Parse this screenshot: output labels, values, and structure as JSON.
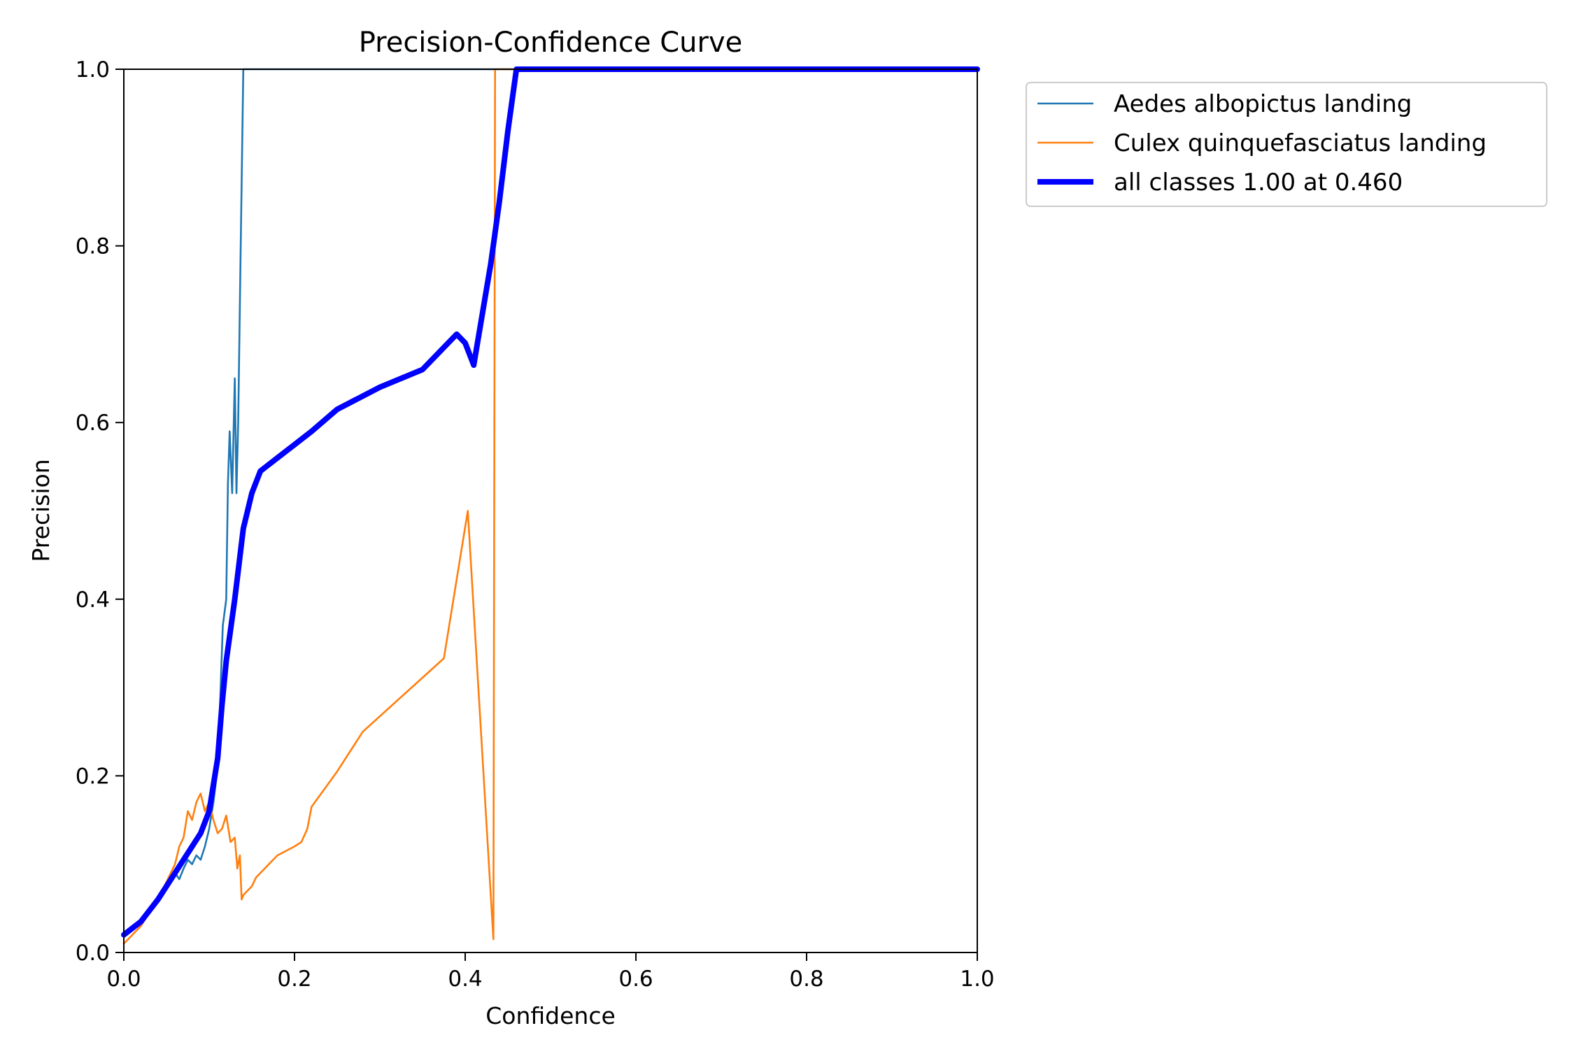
{
  "chart_data": {
    "type": "line",
    "title": "Precision-Confidence Curve",
    "xlabel": "Confidence",
    "ylabel": "Precision",
    "xlim": [
      0,
      1
    ],
    "ylim": [
      0,
      1
    ],
    "xticks": [
      "0.0",
      "0.2",
      "0.4",
      "0.6",
      "0.8",
      "1.0"
    ],
    "yticks": [
      "0.0",
      "0.2",
      "0.4",
      "0.6",
      "0.8",
      "1.0"
    ],
    "grid": false,
    "legend_position": "outside-top-right",
    "series": [
      {
        "name": "Aedes  albopictus landing",
        "color": "#1f77b4",
        "line_width": "thin",
        "points": [
          [
            0.0,
            0.02
          ],
          [
            0.02,
            0.035
          ],
          [
            0.04,
            0.06
          ],
          [
            0.055,
            0.08
          ],
          [
            0.06,
            0.09
          ],
          [
            0.065,
            0.083
          ],
          [
            0.07,
            0.095
          ],
          [
            0.075,
            0.105
          ],
          [
            0.08,
            0.1
          ],
          [
            0.085,
            0.11
          ],
          [
            0.09,
            0.105
          ],
          [
            0.095,
            0.12
          ],
          [
            0.1,
            0.14
          ],
          [
            0.105,
            0.17
          ],
          [
            0.11,
            0.21
          ],
          [
            0.112,
            0.26
          ],
          [
            0.116,
            0.37
          ],
          [
            0.12,
            0.4
          ],
          [
            0.122,
            0.53
          ],
          [
            0.124,
            0.59
          ],
          [
            0.127,
            0.52
          ],
          [
            0.13,
            0.65
          ],
          [
            0.132,
            0.52
          ],
          [
            0.134,
            0.6
          ],
          [
            0.137,
            0.8
          ],
          [
            0.14,
            1.0
          ],
          [
            0.15,
            1.0
          ],
          [
            0.2,
            1.0
          ],
          [
            0.3,
            1.0
          ],
          [
            0.4,
            1.0
          ],
          [
            0.5,
            1.0
          ],
          [
            0.6,
            1.0
          ],
          [
            0.8,
            1.0
          ],
          [
            1.0,
            1.0
          ]
        ]
      },
      {
        "name": "Culex quinquefasciatus landing",
        "color": "#ff7f0e",
        "line_width": "thin",
        "points": [
          [
            0.0,
            0.01
          ],
          [
            0.02,
            0.03
          ],
          [
            0.04,
            0.06
          ],
          [
            0.05,
            0.08
          ],
          [
            0.06,
            0.1
          ],
          [
            0.065,
            0.12
          ],
          [
            0.07,
            0.13
          ],
          [
            0.075,
            0.16
          ],
          [
            0.08,
            0.15
          ],
          [
            0.085,
            0.17
          ],
          [
            0.09,
            0.18
          ],
          [
            0.095,
            0.16
          ],
          [
            0.1,
            0.17
          ],
          [
            0.105,
            0.15
          ],
          [
            0.11,
            0.135
          ],
          [
            0.115,
            0.14
          ],
          [
            0.12,
            0.155
          ],
          [
            0.125,
            0.125
          ],
          [
            0.13,
            0.13
          ],
          [
            0.133,
            0.095
          ],
          [
            0.136,
            0.11
          ],
          [
            0.138,
            0.06
          ],
          [
            0.14,
            0.065
          ],
          [
            0.15,
            0.075
          ],
          [
            0.155,
            0.085
          ],
          [
            0.165,
            0.095
          ],
          [
            0.175,
            0.105
          ],
          [
            0.18,
            0.11
          ],
          [
            0.2,
            0.12
          ],
          [
            0.208,
            0.125
          ],
          [
            0.215,
            0.14
          ],
          [
            0.22,
            0.165
          ],
          [
            0.25,
            0.205
          ],
          [
            0.28,
            0.25
          ],
          [
            0.375,
            0.333
          ],
          [
            0.403,
            0.5
          ],
          [
            0.433,
            0.015
          ],
          [
            0.435,
            1.0
          ],
          [
            0.45,
            1.0
          ],
          [
            0.5,
            1.0
          ],
          [
            0.6,
            1.0
          ],
          [
            0.8,
            1.0
          ],
          [
            1.0,
            1.0
          ]
        ]
      },
      {
        "name": "all classes 1.00 at 0.460",
        "color": "#0000ff",
        "line_width": "thick",
        "points": [
          [
            0.0,
            0.02
          ],
          [
            0.02,
            0.035
          ],
          [
            0.04,
            0.06
          ],
          [
            0.06,
            0.09
          ],
          [
            0.08,
            0.12
          ],
          [
            0.09,
            0.135
          ],
          [
            0.1,
            0.16
          ],
          [
            0.11,
            0.22
          ],
          [
            0.115,
            0.28
          ],
          [
            0.12,
            0.33
          ],
          [
            0.13,
            0.4
          ],
          [
            0.14,
            0.48
          ],
          [
            0.15,
            0.52
          ],
          [
            0.16,
            0.545
          ],
          [
            0.18,
            0.56
          ],
          [
            0.2,
            0.575
          ],
          [
            0.22,
            0.59
          ],
          [
            0.25,
            0.615
          ],
          [
            0.3,
            0.64
          ],
          [
            0.35,
            0.66
          ],
          [
            0.38,
            0.69
          ],
          [
            0.39,
            0.7
          ],
          [
            0.4,
            0.69
          ],
          [
            0.41,
            0.665
          ],
          [
            0.43,
            0.78
          ],
          [
            0.44,
            0.85
          ],
          [
            0.45,
            0.93
          ],
          [
            0.46,
            1.0
          ],
          [
            0.5,
            1.0
          ],
          [
            0.6,
            1.0
          ],
          [
            0.8,
            1.0
          ],
          [
            1.0,
            1.0
          ]
        ]
      }
    ]
  }
}
